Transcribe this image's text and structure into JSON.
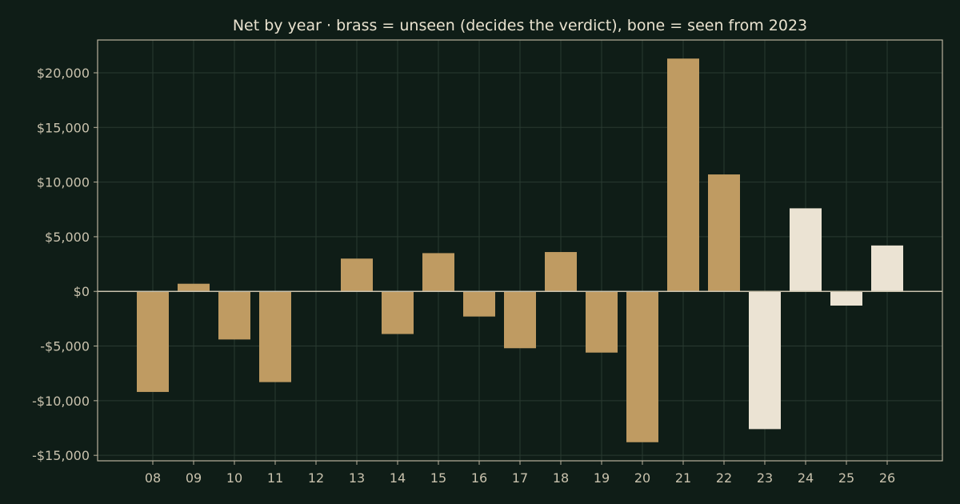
{
  "chart_data": {
    "type": "bar",
    "title": "Net by year  ·  brass = unseen (decides the verdict), bone = seen from 2023",
    "xlabel": "",
    "ylabel": "",
    "categories": [
      "08",
      "09",
      "10",
      "11",
      "12",
      "13",
      "14",
      "15",
      "16",
      "17",
      "18",
      "19",
      "20",
      "21",
      "22",
      "23",
      "24",
      "25",
      "26"
    ],
    "values": [
      -9200,
      700,
      -4400,
      -8300,
      0,
      3000,
      -3900,
      3500,
      -2300,
      -5200,
      3600,
      -5600,
      -13800,
      21300,
      10700,
      -12600,
      7600,
      -1300,
      4200
    ],
    "groups": [
      "unseen",
      "unseen",
      "unseen",
      "unseen",
      "unseen",
      "unseen",
      "unseen",
      "unseen",
      "unseen",
      "unseen",
      "unseen",
      "unseen",
      "unseen",
      "unseen",
      "unseen",
      "seen",
      "seen",
      "seen",
      "seen"
    ],
    "colors": {
      "unseen": "#bf9b62",
      "seen": "#ebe3d3",
      "background": "#0f1d17",
      "grid": "#2a3a31",
      "axis": "#b9b29d",
      "zero_line": "#c9c2ad"
    },
    "ylim": [
      -15500,
      23000
    ],
    "yticks": [
      -15000,
      -10000,
      -5000,
      0,
      5000,
      10000,
      15000,
      20000
    ],
    "ytick_labels": [
      "-$15,000",
      "-$10,000",
      "-$5,000",
      "$0",
      "$5,000",
      "$10,000",
      "$15,000",
      "$20,000"
    ],
    "grid": true,
    "legend": "none"
  }
}
